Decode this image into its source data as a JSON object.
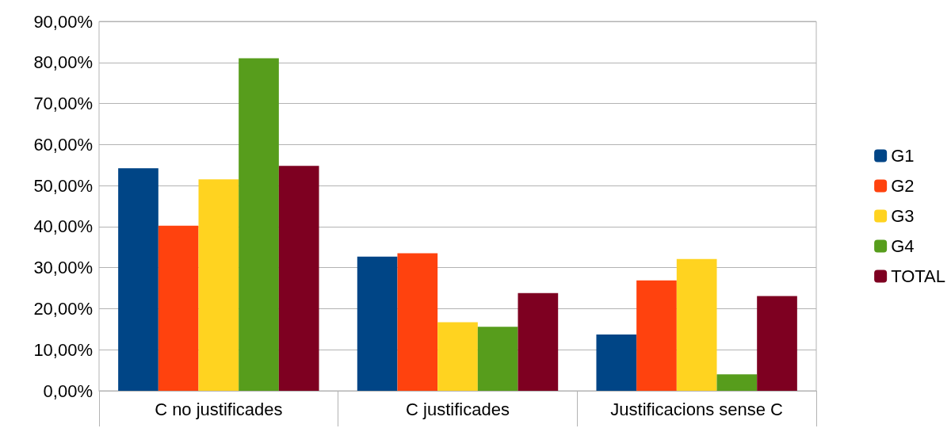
{
  "chart_data": {
    "type": "bar",
    "categories": [
      "C no justificades",
      "C justificades",
      "Justificacions sense C"
    ],
    "series": [
      {
        "name": "G1",
        "color": "#004586",
        "values": [
          54.2,
          32.7,
          13.7
        ]
      },
      {
        "name": "G2",
        "color": "#ff420e",
        "values": [
          40.2,
          33.5,
          26.9
        ]
      },
      {
        "name": "G3",
        "color": "#ffd320",
        "values": [
          51.5,
          16.7,
          32.1
        ]
      },
      {
        "name": "G4",
        "color": "#579d1c",
        "values": [
          81.0,
          15.6,
          4.0
        ]
      },
      {
        "name": "TOTAL",
        "color": "#7e0021",
        "values": [
          54.8,
          23.8,
          23.1
        ]
      }
    ],
    "ylim": [
      0,
      90
    ],
    "yticks": [
      {
        "value": 0,
        "label": "0,00%"
      },
      {
        "value": 10,
        "label": "10,00%"
      },
      {
        "value": 20,
        "label": "20,00%"
      },
      {
        "value": 30,
        "label": "30,00%"
      },
      {
        "value": 40,
        "label": "40,00%"
      },
      {
        "value": 50,
        "label": "50,00%"
      },
      {
        "value": 60,
        "label": "60,00%"
      },
      {
        "value": 70,
        "label": "70,00%"
      },
      {
        "value": 80,
        "label": "80,00%"
      },
      {
        "value": 90,
        "label": "90,00%"
      }
    ],
    "grid": "y",
    "legend": "right"
  }
}
